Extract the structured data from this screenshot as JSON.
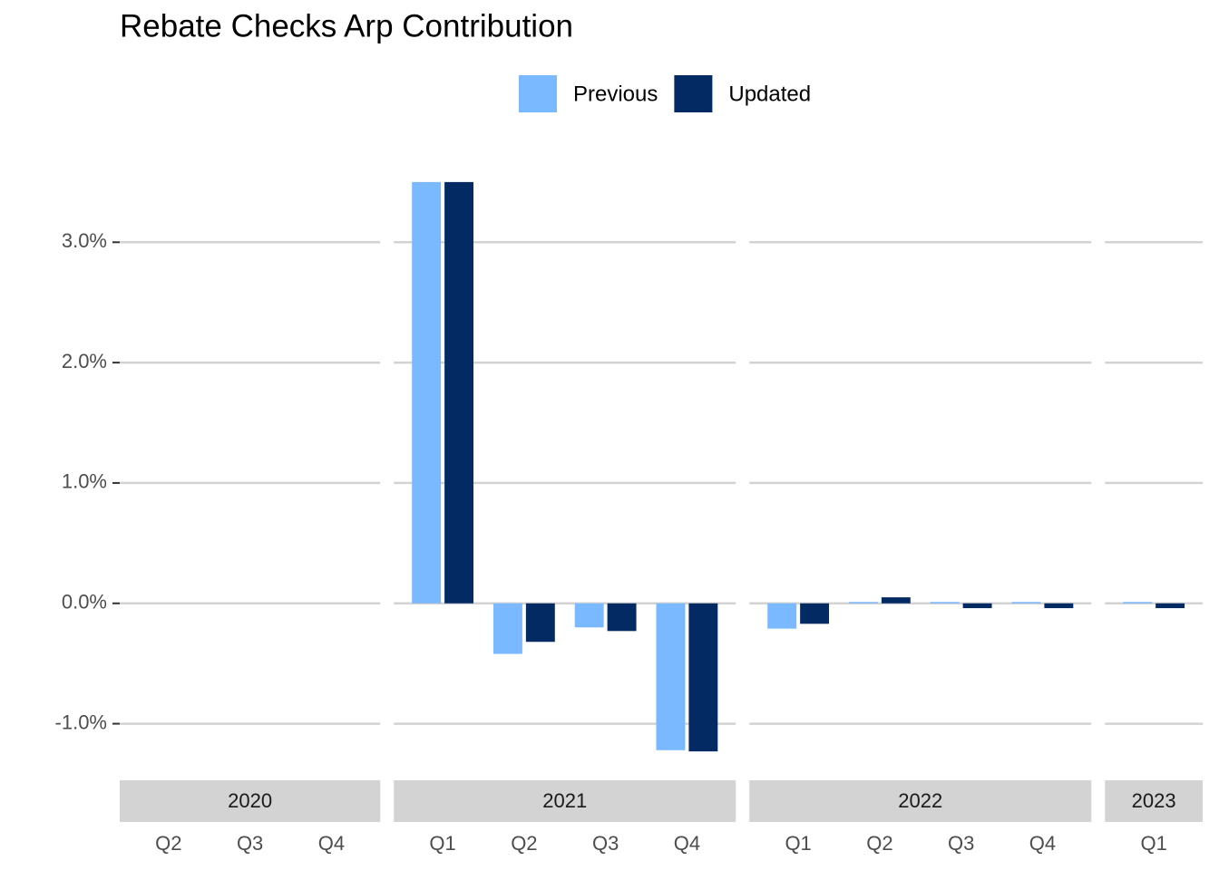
{
  "chart_data": {
    "type": "bar",
    "title": "Rebate Checks Arp Contribution",
    "facets": [
      {
        "label": "2020",
        "categories": [
          "Q2",
          "Q3",
          "Q4"
        ]
      },
      {
        "label": "2021",
        "categories": [
          "Q1",
          "Q2",
          "Q3",
          "Q4"
        ]
      },
      {
        "label": "2022",
        "categories": [
          "Q1",
          "Q2",
          "Q3",
          "Q4"
        ]
      },
      {
        "label": "2023",
        "categories": [
          "Q1"
        ]
      }
    ],
    "series": [
      {
        "name": "Previous",
        "color": "#7ab8ff",
        "values": [
          null,
          null,
          null,
          3.5,
          -0.42,
          -0.2,
          -1.22,
          -0.21,
          0.0,
          0.0,
          0.0,
          0.0
        ]
      },
      {
        "name": "Updated",
        "color": "#032a63",
        "values": [
          null,
          null,
          null,
          3.5,
          -0.32,
          -0.23,
          -1.23,
          -0.17,
          0.05,
          -0.04,
          -0.04,
          -0.04
        ]
      }
    ],
    "ylim": [
      -1.47,
      3.74
    ],
    "yticks": [
      {
        "value": -1,
        "label": "-1.0%"
      },
      {
        "value": 0,
        "label": "0.0%"
      },
      {
        "value": 1,
        "label": "1.0%"
      },
      {
        "value": 2,
        "label": "2.0%"
      },
      {
        "value": 3,
        "label": "3.0%"
      }
    ],
    "grid": true,
    "legend": "top"
  }
}
